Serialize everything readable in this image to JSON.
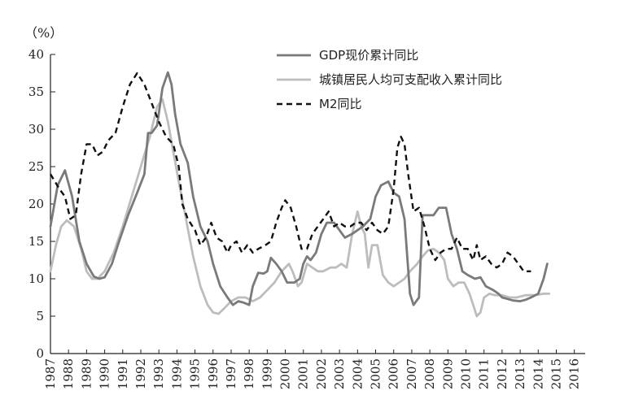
{
  "chart_data": {
    "type": "line",
    "unit_label": "（%）",
    "ylim": [
      0,
      40
    ],
    "yticks": [
      "0",
      "5",
      "10",
      "15",
      "20",
      "25",
      "30",
      "35",
      "40"
    ],
    "xlim": [
      1987,
      2016.6
    ],
    "xticks": [
      "1987",
      "1988",
      "1989",
      "1990",
      "1991",
      "1992",
      "1993",
      "1994",
      "1995",
      "1996",
      "1997",
      "1998",
      "1999",
      "2000",
      "2001",
      "2002",
      "2003",
      "2004",
      "2005",
      "2006",
      "2007",
      "2008",
      "2009",
      "2010",
      "2011",
      "2012",
      "2013",
      "2014",
      "2015",
      "2016"
    ],
    "legend_position": "top-right",
    "series": [
      {
        "name": "GDP现价累计同比",
        "color": "#7a7a7a",
        "style": "solid",
        "points": [
          [
            1987,
            17
          ],
          [
            1987.4,
            22.5
          ],
          [
            1987.8,
            24.5
          ],
          [
            1988.2,
            21
          ],
          [
            1988.6,
            15
          ],
          [
            1989,
            12
          ],
          [
            1989.4,
            10.3
          ],
          [
            1989.7,
            10
          ],
          [
            1990,
            10.2
          ],
          [
            1990.4,
            12
          ],
          [
            1990.8,
            15
          ],
          [
            1991.3,
            18.5
          ],
          [
            1991.8,
            21.5
          ],
          [
            1992.2,
            24
          ],
          [
            1992.4,
            29.5
          ],
          [
            1992.6,
            29.5
          ],
          [
            1992.9,
            30.5
          ],
          [
            1993.2,
            35.5
          ],
          [
            1993.5,
            37.6
          ],
          [
            1993.7,
            36
          ],
          [
            1993.9,
            32
          ],
          [
            1994.2,
            28
          ],
          [
            1994.6,
            25.5
          ],
          [
            1994.9,
            21
          ],
          [
            1995.3,
            17
          ],
          [
            1995.7,
            15
          ],
          [
            1996,
            12
          ],
          [
            1996.4,
            9
          ],
          [
            1996.8,
            7.5
          ],
          [
            1997.1,
            6.5
          ],
          [
            1997.4,
            7
          ],
          [
            1997.7,
            6.8
          ],
          [
            1998,
            6.5
          ],
          [
            1998.2,
            9
          ],
          [
            1998.5,
            10.8
          ],
          [
            1998.8,
            10.7
          ],
          [
            1999,
            11
          ],
          [
            1999.2,
            12.8
          ],
          [
            1999.5,
            12
          ],
          [
            1999.8,
            11
          ],
          [
            2000.1,
            9.5
          ],
          [
            2000.5,
            9.5
          ],
          [
            2000.8,
            10
          ],
          [
            2001,
            12
          ],
          [
            2001.2,
            13
          ],
          [
            2001.4,
            12.5
          ],
          [
            2001.7,
            13.5
          ],
          [
            2002,
            16
          ],
          [
            2002.3,
            17.5
          ],
          [
            2002.7,
            17.5
          ],
          [
            2003,
            16.5
          ],
          [
            2003.3,
            15.5
          ],
          [
            2003.7,
            16
          ],
          [
            2004,
            16.5
          ],
          [
            2004.3,
            17
          ],
          [
            2004.7,
            18
          ],
          [
            2005,
            21
          ],
          [
            2005.3,
            22.5
          ],
          [
            2005.7,
            23
          ],
          [
            2006,
            21.5
          ],
          [
            2006.3,
            21
          ],
          [
            2006.6,
            18
          ],
          [
            2006.9,
            8
          ],
          [
            2007.1,
            6.5
          ],
          [
            2007.4,
            7.5
          ],
          [
            2007.6,
            18.5
          ],
          [
            2007.9,
            18.5
          ],
          [
            2008.2,
            18.5
          ],
          [
            2008.5,
            19.5
          ],
          [
            2008.9,
            19.5
          ],
          [
            2009.2,
            16
          ],
          [
            2009.5,
            14
          ],
          [
            2009.8,
            11
          ],
          [
            2010.1,
            10.5
          ],
          [
            2010.5,
            10
          ],
          [
            2010.8,
            10.2
          ],
          [
            2011.1,
            9
          ],
          [
            2011.5,
            8.5
          ],
          [
            2011.8,
            8
          ],
          [
            2012,
            7.5
          ],
          [
            2012.3,
            7.3
          ],
          [
            2012.6,
            7.1
          ],
          [
            2013,
            7
          ],
          [
            2013.3,
            7.2
          ],
          [
            2013.6,
            7.5
          ],
          [
            2014,
            8
          ],
          [
            2014.3,
            10
          ],
          [
            2014.5,
            12
          ]
        ]
      },
      {
        "name": "城镇居民人均可支配收入累计同比",
        "color": "#bdbdbd",
        "style": "solid",
        "points": [
          [
            1987,
            11
          ],
          [
            1987.3,
            14.5
          ],
          [
            1987.6,
            17
          ],
          [
            1987.9,
            17.8
          ],
          [
            1988.3,
            17
          ],
          [
            1988.7,
            14
          ],
          [
            1989,
            11
          ],
          [
            1989.3,
            10
          ],
          [
            1989.6,
            10
          ],
          [
            1990,
            11
          ],
          [
            1990.5,
            13.5
          ],
          [
            1991,
            17
          ],
          [
            1991.5,
            21
          ],
          [
            1992,
            25
          ],
          [
            1992.5,
            29
          ],
          [
            1992.9,
            33
          ],
          [
            1993.2,
            34
          ],
          [
            1993.5,
            31
          ],
          [
            1993.8,
            27
          ],
          [
            1994.1,
            23
          ],
          [
            1994.5,
            18
          ],
          [
            1994.9,
            13
          ],
          [
            1995.3,
            9
          ],
          [
            1995.7,
            6.5
          ],
          [
            1996,
            5.5
          ],
          [
            1996.3,
            5.3
          ],
          [
            1996.6,
            6
          ],
          [
            1997,
            7
          ],
          [
            1997.4,
            7.5
          ],
          [
            1997.8,
            7.5
          ],
          [
            1998.2,
            7
          ],
          [
            1998.6,
            7.5
          ],
          [
            1999,
            8.5
          ],
          [
            1999.4,
            9.5
          ],
          [
            1999.8,
            11
          ],
          [
            2000.2,
            12
          ],
          [
            2000.4,
            11
          ],
          [
            2000.7,
            9
          ],
          [
            2000.9,
            9.5
          ],
          [
            2001.2,
            12
          ],
          [
            2001.5,
            11.5
          ],
          [
            2001.8,
            11
          ],
          [
            2002.1,
            11
          ],
          [
            2002.5,
            11.5
          ],
          [
            2002.8,
            11.5
          ],
          [
            2003.1,
            12
          ],
          [
            2003.4,
            11.5
          ],
          [
            2003.7,
            16
          ],
          [
            2004,
            19
          ],
          [
            2004.2,
            17
          ],
          [
            2004.4,
            16
          ],
          [
            2004.6,
            11.5
          ],
          [
            2004.8,
            14.5
          ],
          [
            2005.1,
            14.5
          ],
          [
            2005.4,
            10.5
          ],
          [
            2005.7,
            9.5
          ],
          [
            2006,
            9
          ],
          [
            2006.3,
            9.5
          ],
          [
            2006.6,
            10
          ],
          [
            2006.9,
            11
          ],
          [
            2007.3,
            12
          ],
          [
            2007.6,
            13
          ],
          [
            2007.9,
            13.8
          ],
          [
            2008.2,
            14
          ],
          [
            2008.5,
            13.5
          ],
          [
            2008.8,
            12.5
          ],
          [
            2009,
            10
          ],
          [
            2009.3,
            9
          ],
          [
            2009.6,
            9.5
          ],
          [
            2009.9,
            9.5
          ],
          [
            2010.2,
            8
          ],
          [
            2010.4,
            6.5
          ],
          [
            2010.6,
            5
          ],
          [
            2010.8,
            5.5
          ],
          [
            2011,
            7.5
          ],
          [
            2011.3,
            8
          ],
          [
            2011.6,
            7.8
          ],
          [
            2012,
            7.8
          ],
          [
            2012.4,
            7.5
          ],
          [
            2012.8,
            7.5
          ],
          [
            2013.3,
            7.8
          ],
          [
            2013.8,
            7.8
          ],
          [
            2014.3,
            8
          ],
          [
            2014.6,
            8
          ]
        ]
      },
      {
        "name": "M2同比",
        "color": "#111111",
        "style": "dashed",
        "points": [
          [
            1987,
            24
          ],
          [
            1987.5,
            22
          ],
          [
            1987.8,
            21
          ],
          [
            1988.1,
            18
          ],
          [
            1988.4,
            18.5
          ],
          [
            1988.7,
            24
          ],
          [
            1989,
            28
          ],
          [
            1989.3,
            28
          ],
          [
            1989.6,
            26.5
          ],
          [
            1989.9,
            27
          ],
          [
            1990.2,
            28.5
          ],
          [
            1990.6,
            29.5
          ],
          [
            1991,
            33
          ],
          [
            1991.4,
            36
          ],
          [
            1991.8,
            37.5
          ],
          [
            1992.2,
            36
          ],
          [
            1992.6,
            33.5
          ],
          [
            1993,
            31
          ],
          [
            1993.4,
            29
          ],
          [
            1993.8,
            28
          ],
          [
            1994.1,
            25
          ],
          [
            1994.3,
            20
          ],
          [
            1994.6,
            18
          ],
          [
            1995,
            16.5
          ],
          [
            1995.3,
            14.5
          ],
          [
            1995.6,
            15.5
          ],
          [
            1995.9,
            17.5
          ],
          [
            1996.2,
            15.5
          ],
          [
            1996.5,
            15
          ],
          [
            1996.8,
            13.5
          ],
          [
            1997,
            14.5
          ],
          [
            1997.3,
            15
          ],
          [
            1997.6,
            13.5
          ],
          [
            1997.9,
            14.5
          ],
          [
            1998.2,
            13.5
          ],
          [
            1998.5,
            14
          ],
          [
            1998.9,
            14.5
          ],
          [
            1999.2,
            15
          ],
          [
            1999.5,
            17.5
          ],
          [
            1999.8,
            19.5
          ],
          [
            2000,
            20.5
          ],
          [
            2000.3,
            19.5
          ],
          [
            2000.6,
            17
          ],
          [
            2000.9,
            14
          ],
          [
            2001.2,
            14
          ],
          [
            2001.5,
            16
          ],
          [
            2001.8,
            17
          ],
          [
            2002.1,
            18
          ],
          [
            2002.4,
            19
          ],
          [
            2002.7,
            17
          ],
          [
            2003,
            17.5
          ],
          [
            2003.3,
            17
          ],
          [
            2003.6,
            17
          ],
          [
            2003.9,
            17.5
          ],
          [
            2004.2,
            17.5
          ],
          [
            2004.5,
            16.5
          ],
          [
            2004.8,
            17.5
          ],
          [
            2005.1,
            16.5
          ],
          [
            2005.4,
            16
          ],
          [
            2005.7,
            17
          ],
          [
            2006,
            22
          ],
          [
            2006.2,
            27.5
          ],
          [
            2006.4,
            29
          ],
          [
            2006.6,
            28
          ],
          [
            2006.8,
            24
          ],
          [
            2007.1,
            19
          ],
          [
            2007.4,
            19.5
          ],
          [
            2007.7,
            17
          ],
          [
            2008,
            14
          ],
          [
            2008.3,
            12.5
          ],
          [
            2008.6,
            13.5
          ],
          [
            2008.9,
            14
          ],
          [
            2009.2,
            14
          ],
          [
            2009.5,
            15.5
          ],
          [
            2009.8,
            14
          ],
          [
            2010.1,
            14
          ],
          [
            2010.4,
            12.5
          ],
          [
            2010.6,
            14.5
          ],
          [
            2010.8,
            12.5
          ],
          [
            2011.1,
            13
          ],
          [
            2011.4,
            12
          ],
          [
            2011.7,
            11.5
          ],
          [
            2012,
            12
          ],
          [
            2012.3,
            13.5
          ],
          [
            2012.6,
            13
          ],
          [
            2012.9,
            12
          ],
          [
            2013.2,
            11
          ],
          [
            2013.6,
            11
          ]
        ]
      }
    ]
  }
}
